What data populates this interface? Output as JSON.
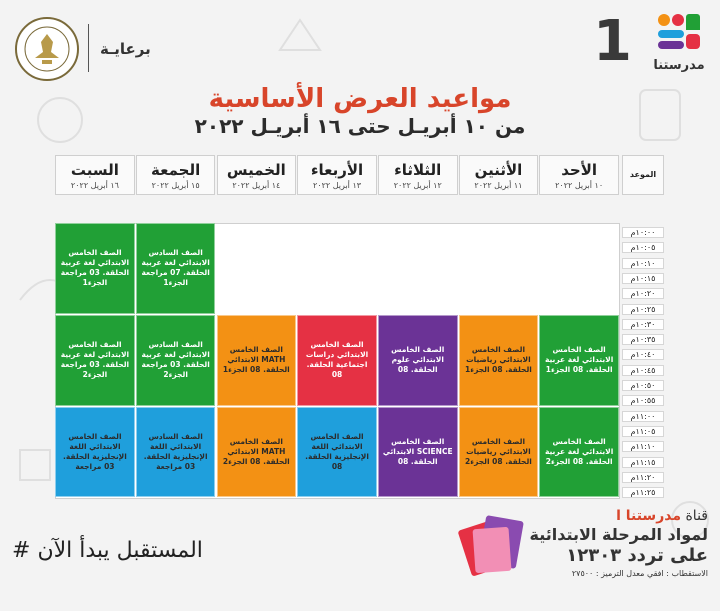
{
  "header": {
    "sponsor_label": "برعايـة",
    "channel_number": "1",
    "brand_name": "مدرستنا",
    "ministry_seal_text": "MINISTRY OF EDUCATION AND TECHNICAL EDUCATION"
  },
  "title": "مواعيد العرض الأساسية",
  "subtitle": "من ١٠ أبريـل حتى ١٦ أبريـل ٢٠٢٢",
  "schedule": {
    "time_header": "الموعد",
    "days": [
      {
        "name": "الأحد",
        "date": "١٠ أبريل ٢٠٢٢"
      },
      {
        "name": "الأثنين",
        "date": "١١ أبريل ٢٠٢٢"
      },
      {
        "name": "الثلاثاء",
        "date": "١٢ أبريل ٢٠٢٢"
      },
      {
        "name": "الأربعاء",
        "date": "١٣ أبريل ٢٠٢٢"
      },
      {
        "name": "الخميس",
        "date": "١٤ أبريل ٢٠٢٢"
      },
      {
        "name": "الجمعة",
        "date": "١٥ أبريل ٢٠٢٢"
      },
      {
        "name": "السبت",
        "date": "١٦ أبريل ٢٠٢٢"
      }
    ],
    "times": [
      "١٠:٠٠م",
      "١٠:٠٥م",
      "١٠:١٠م",
      "١٠:١٥م",
      "١٠:٢٠م",
      "١٠:٢٥م",
      "١٠:٣٠م",
      "١٠:٣٥م",
      "١٠:٤٠م",
      "١٠:٤٥م",
      "١٠:٥٠م",
      "١٠:٥٥م",
      "١١:٠٠م",
      "١١:٠٥م",
      "١١:١٠م",
      "١١:١٥م",
      "١١:٢٠م",
      "١١:٢٥م"
    ],
    "blocks": [
      {
        "day": 5,
        "row": 0,
        "color": "green",
        "text": "الصف السادس الابتدائي لغة عربية الحلقة. 07 مراجعة الجزء1"
      },
      {
        "day": 6,
        "row": 0,
        "color": "green",
        "text": "الصف الخامس الابتدائي لغة عربية الحلقة. 03 مراجعة الجزء1"
      },
      {
        "day": 0,
        "row": 1,
        "color": "green",
        "text": "الصف الخامس الابتدائي لغة عربية الحلقة. 08 الجزء1"
      },
      {
        "day": 1,
        "row": 1,
        "color": "orange",
        "text": "الصف الخامس الابتدائي رياضيات الحلقة. 08 الجزء1"
      },
      {
        "day": 2,
        "row": 1,
        "color": "purple",
        "text": "الصف الخامس الابتدائي علوم الحلقة. 08"
      },
      {
        "day": 3,
        "row": 1,
        "color": "red",
        "text": "الصف الخامس الابتدائي دراسات اجتماعية الحلقة. 08"
      },
      {
        "day": 4,
        "row": 1,
        "color": "orange",
        "text": "الصف الخامس الابتدائي MATH الحلقة. 08 الجزء1"
      },
      {
        "day": 5,
        "row": 1,
        "color": "green",
        "text": "الصف السادس الابتدائي لغة عربية الحلقة. 03 مراجعة الجزء2"
      },
      {
        "day": 6,
        "row": 1,
        "color": "green",
        "text": "الصف الخامس الابتدائي لغة عربية الحلقة. 03 مراجعة الجزء2"
      },
      {
        "day": 0,
        "row": 2,
        "color": "green",
        "text": "الصف الخامس الابتدائي لغة عربية الحلقة. 08 الجزء2"
      },
      {
        "day": 1,
        "row": 2,
        "color": "orange",
        "text": "الصف الخامس الابتدائي رياضيات الحلقة. 08 الجزء2"
      },
      {
        "day": 2,
        "row": 2,
        "color": "purple",
        "text": "الصف الخامس الابتدائي SCIENCE الحلقة. 08"
      },
      {
        "day": 3,
        "row": 2,
        "color": "blue",
        "text": "الصف الخامس الابتدائي اللغة الإنجليزية الحلقة. 08"
      },
      {
        "day": 4,
        "row": 2,
        "color": "orange",
        "text": "الصف الخامس الابتدائي MATH الحلقة. 08 الجزء2"
      },
      {
        "day": 5,
        "row": 2,
        "color": "blue",
        "text": "الصف السادس الابتدائي اللغة الإنجليزية الحلقة. 03 مراجعة"
      },
      {
        "day": 6,
        "row": 2,
        "color": "blue",
        "text": "الصف الخامس الابتدائي اللغة الإنجليزية الحلقة. 03 مراجعة"
      }
    ]
  },
  "footer": {
    "hashtag": "# المستقبل يبدأ الآن",
    "channel_prefix": "قناة",
    "channel_name": "مدرستنا ا",
    "line2": "لمواد المرحلة الابتدائية",
    "line3": "على تردد ١٢٣٠٣",
    "line4": "الاستقطاب : افقي معدل الترميز : ٢٧٥٠٠"
  },
  "colors": {
    "green": "#21a036",
    "orange": "#f39114",
    "red": "#e53144",
    "purple": "#6b3396",
    "blue": "#1f9fdc",
    "title": "#d8452a"
  }
}
